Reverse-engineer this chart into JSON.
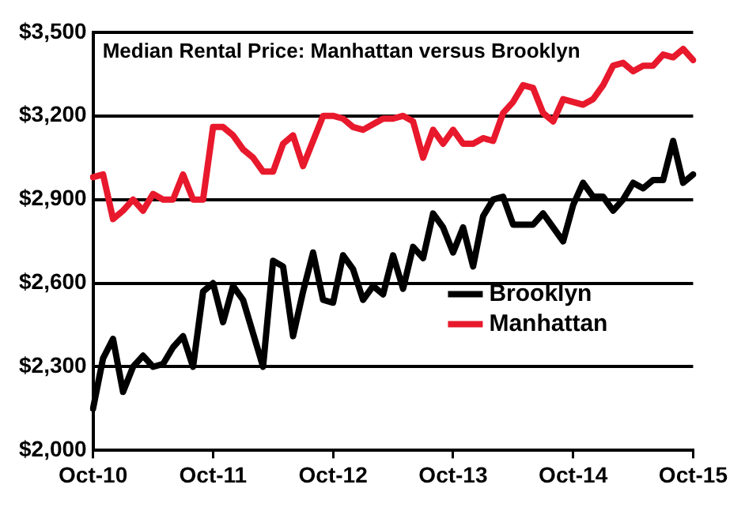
{
  "chart_data": {
    "type": "line",
    "title": "Median Rental Price: Manhattan versus Brooklyn",
    "categories": [
      "Oct-10",
      null,
      null,
      null,
      null,
      null,
      null,
      null,
      null,
      null,
      null,
      null,
      "Oct-11",
      null,
      null,
      null,
      null,
      null,
      null,
      null,
      null,
      null,
      null,
      null,
      "Oct-12",
      null,
      null,
      null,
      null,
      null,
      null,
      null,
      null,
      null,
      null,
      null,
      "Oct-13",
      null,
      null,
      null,
      null,
      null,
      null,
      null,
      null,
      null,
      null,
      null,
      "Oct-14",
      null,
      null,
      null,
      null,
      null,
      null,
      null,
      null,
      null,
      null,
      null,
      "Oct-15"
    ],
    "series": [
      {
        "name": "Brooklyn",
        "color": "#000000",
        "values": [
          2150,
          2330,
          2400,
          2210,
          2300,
          2340,
          2300,
          2310,
          2370,
          2410,
          2300,
          2570,
          2600,
          2460,
          2590,
          2540,
          2420,
          2300,
          2680,
          2660,
          2410,
          2570,
          2710,
          2540,
          2530,
          2700,
          2650,
          2540,
          2590,
          2560,
          2700,
          2580,
          2730,
          2690,
          2850,
          2800,
          2710,
          2800,
          2660,
          2840,
          2900,
          2910,
          2810,
          2810,
          2810,
          2850,
          2800,
          2750,
          2880,
          2960,
          2910,
          2910,
          2860,
          2900,
          2960,
          2940,
          2970,
          2970,
          3110,
          2960,
          2990
        ]
      },
      {
        "name": "Manhattan",
        "color": "#e8192c",
        "values": [
          2980,
          2990,
          2830,
          2860,
          2900,
          2860,
          2920,
          2900,
          2900,
          2990,
          2900,
          2900,
          3160,
          3160,
          3130,
          3080,
          3050,
          3000,
          3000,
          3100,
          3130,
          3020,
          3110,
          3200,
          3200,
          3190,
          3160,
          3150,
          3170,
          3190,
          3190,
          3200,
          3180,
          3050,
          3150,
          3100,
          3150,
          3100,
          3100,
          3120,
          3110,
          3210,
          3250,
          3310,
          3300,
          3210,
          3180,
          3260,
          3250,
          3240,
          3260,
          3310,
          3380,
          3390,
          3360,
          3380,
          3380,
          3420,
          3410,
          3440,
          3400
        ]
      }
    ],
    "ylim": [
      2000,
      3500
    ],
    "yticks": [
      {
        "value": 2000,
        "label": "$2,000"
      },
      {
        "value": 2300,
        "label": "$2,300"
      },
      {
        "value": 2600,
        "label": "$2,600"
      },
      {
        "value": 2900,
        "label": "$2,900"
      },
      {
        "value": 3200,
        "label": "$3,200"
      },
      {
        "value": 3500,
        "label": "$3,500"
      }
    ],
    "grid": "y",
    "legend": "bottom right",
    "marker": "none",
    "line_style": "solid"
  }
}
